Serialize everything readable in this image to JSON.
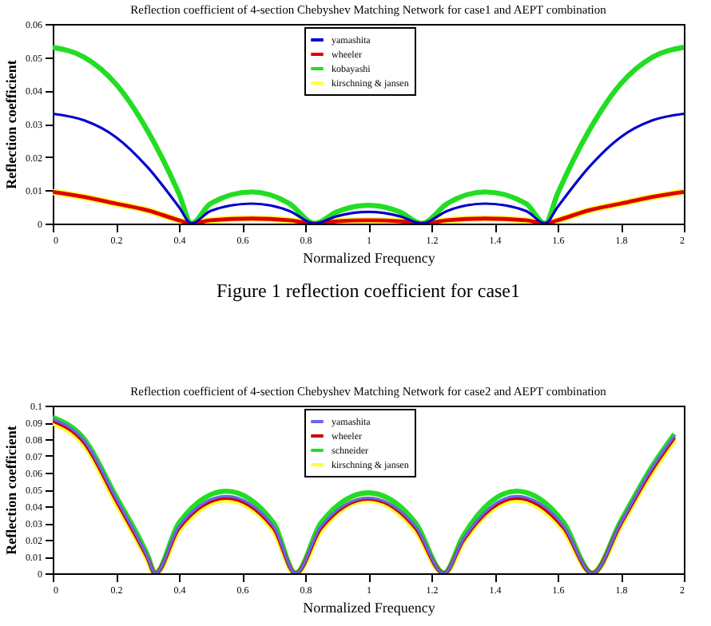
{
  "chart_data": [
    {
      "type": "line",
      "title": "Reflection coefficient of 4-section Chebyshev Matching Network for case1 and AEPT combination",
      "xlabel": "Normalized Frequency",
      "ylabel": "Reflection coefficient",
      "annotations": [
        "Figure 1 reflection coefficient for case1"
      ],
      "x": [
        0,
        0.1,
        0.2,
        0.3,
        0.4,
        0.44,
        0.5,
        0.63,
        0.75,
        0.83,
        0.9,
        1.0,
        1.1,
        1.17,
        1.25,
        1.37,
        1.5,
        1.56,
        1.6,
        1.7,
        1.8,
        1.9,
        2.0
      ],
      "series": [
        {
          "name": "yamashita",
          "color": "#0000cc",
          "values": [
            0.033,
            0.031,
            0.026,
            0.017,
            0.005,
            0,
            0.0038,
            0.006,
            0.0038,
            0,
            0.0022,
            0.0035,
            0.0022,
            0,
            0.0038,
            0.006,
            0.0038,
            0,
            0.005,
            0.017,
            0.026,
            0.031,
            0.033
          ]
        },
        {
          "name": "wheeler",
          "color": "#dd0000",
          "values": [
            0.0095,
            0.008,
            0.006,
            0.004,
            0.001,
            0,
            0.001,
            0.0015,
            0.001,
            0,
            0.0007,
            0.001,
            0.0007,
            0,
            0.001,
            0.0015,
            0.001,
            0,
            0.001,
            0.004,
            0.006,
            0.008,
            0.0095
          ]
        },
        {
          "name": "kobayashi",
          "color": "#22dd22",
          "values": [
            0.053,
            0.05,
            0.042,
            0.028,
            0.009,
            0,
            0.006,
            0.0095,
            0.006,
            0,
            0.0035,
            0.0055,
            0.0035,
            0,
            0.006,
            0.0095,
            0.006,
            0,
            0.009,
            0.028,
            0.042,
            0.05,
            0.053
          ]
        },
        {
          "name": "kirschning & jansen",
          "color": "#ffff33",
          "values": [
            0.0095,
            0.008,
            0.006,
            0.004,
            0.001,
            0,
            0.001,
            0.0015,
            0.001,
            0,
            0.0007,
            0.001,
            0.0007,
            0,
            0.001,
            0.0015,
            0.001,
            0,
            0.001,
            0.004,
            0.006,
            0.008,
            0.0095
          ]
        }
      ],
      "xlim": [
        0,
        2
      ],
      "xticks": [
        0,
        0.2,
        0.4,
        0.6,
        0.8,
        1,
        1.2,
        1.4,
        1.6,
        1.8,
        2
      ],
      "ylim": [
        0,
        0.06
      ],
      "yticks": [
        0,
        0.01,
        0.02,
        0.03,
        0.04,
        0.05,
        0.06
      ],
      "grid": false,
      "legend": "top",
      "line_style": "solid",
      "marker": "none"
    },
    {
      "type": "line",
      "title": "Reflection coefficient of 4-section Chebyshev Matching Network for case2 and AEPT combination",
      "xlabel": "Normalized Frequency",
      "ylabel": "Reflection coefficient",
      "x": [
        0,
        0.1,
        0.2,
        0.3,
        0.325,
        0.4,
        0.55,
        0.7,
        0.77,
        0.85,
        1.0,
        1.15,
        1.24,
        1.3,
        1.47,
        1.62,
        1.71,
        1.8,
        1.9,
        1.97
      ],
      "series": [
        {
          "name": "yamashita",
          "color": "#6666ee",
          "values": [
            0.092,
            0.079,
            0.045,
            0.01,
            0,
            0.028,
            0.046,
            0.028,
            0,
            0.028,
            0.045,
            0.028,
            0,
            0.02,
            0.046,
            0.028,
            0,
            0.03,
            0.063,
            0.082
          ]
        },
        {
          "name": "wheeler",
          "color": "#cc0000",
          "values": [
            0.091,
            0.078,
            0.044,
            0.0095,
            0,
            0.027,
            0.045,
            0.027,
            0,
            0.027,
            0.0445,
            0.027,
            0,
            0.0195,
            0.045,
            0.027,
            0,
            0.0295,
            0.062,
            0.081
          ]
        },
        {
          "name": "schneider",
          "color": "#22dd22",
          "values": [
            0.093,
            0.08,
            0.046,
            0.011,
            0,
            0.03,
            0.049,
            0.03,
            0,
            0.03,
            0.048,
            0.03,
            0,
            0.022,
            0.049,
            0.03,
            0,
            0.031,
            0.064,
            0.083
          ]
        },
        {
          "name": "kirschning & jansen",
          "color": "#ffff33",
          "values": [
            0.09,
            0.077,
            0.043,
            0.009,
            0,
            0.026,
            0.044,
            0.026,
            0,
            0.026,
            0.044,
            0.026,
            0,
            0.019,
            0.044,
            0.026,
            0,
            0.029,
            0.061,
            0.08
          ]
        }
      ],
      "xlim": [
        0,
        2
      ],
      "xticks": [
        0,
        0.2,
        0.4,
        0.6,
        0.8,
        1,
        1.2,
        1.4,
        1.6,
        1.8,
        2
      ],
      "ylim": [
        0,
        0.1
      ],
      "yticks": [
        0,
        0.01,
        0.02,
        0.03,
        0.04,
        0.05,
        0.06,
        0.07,
        0.08,
        0.09,
        0.1
      ],
      "grid": false,
      "legend": "top",
      "line_style": "solid",
      "marker": "none"
    }
  ]
}
